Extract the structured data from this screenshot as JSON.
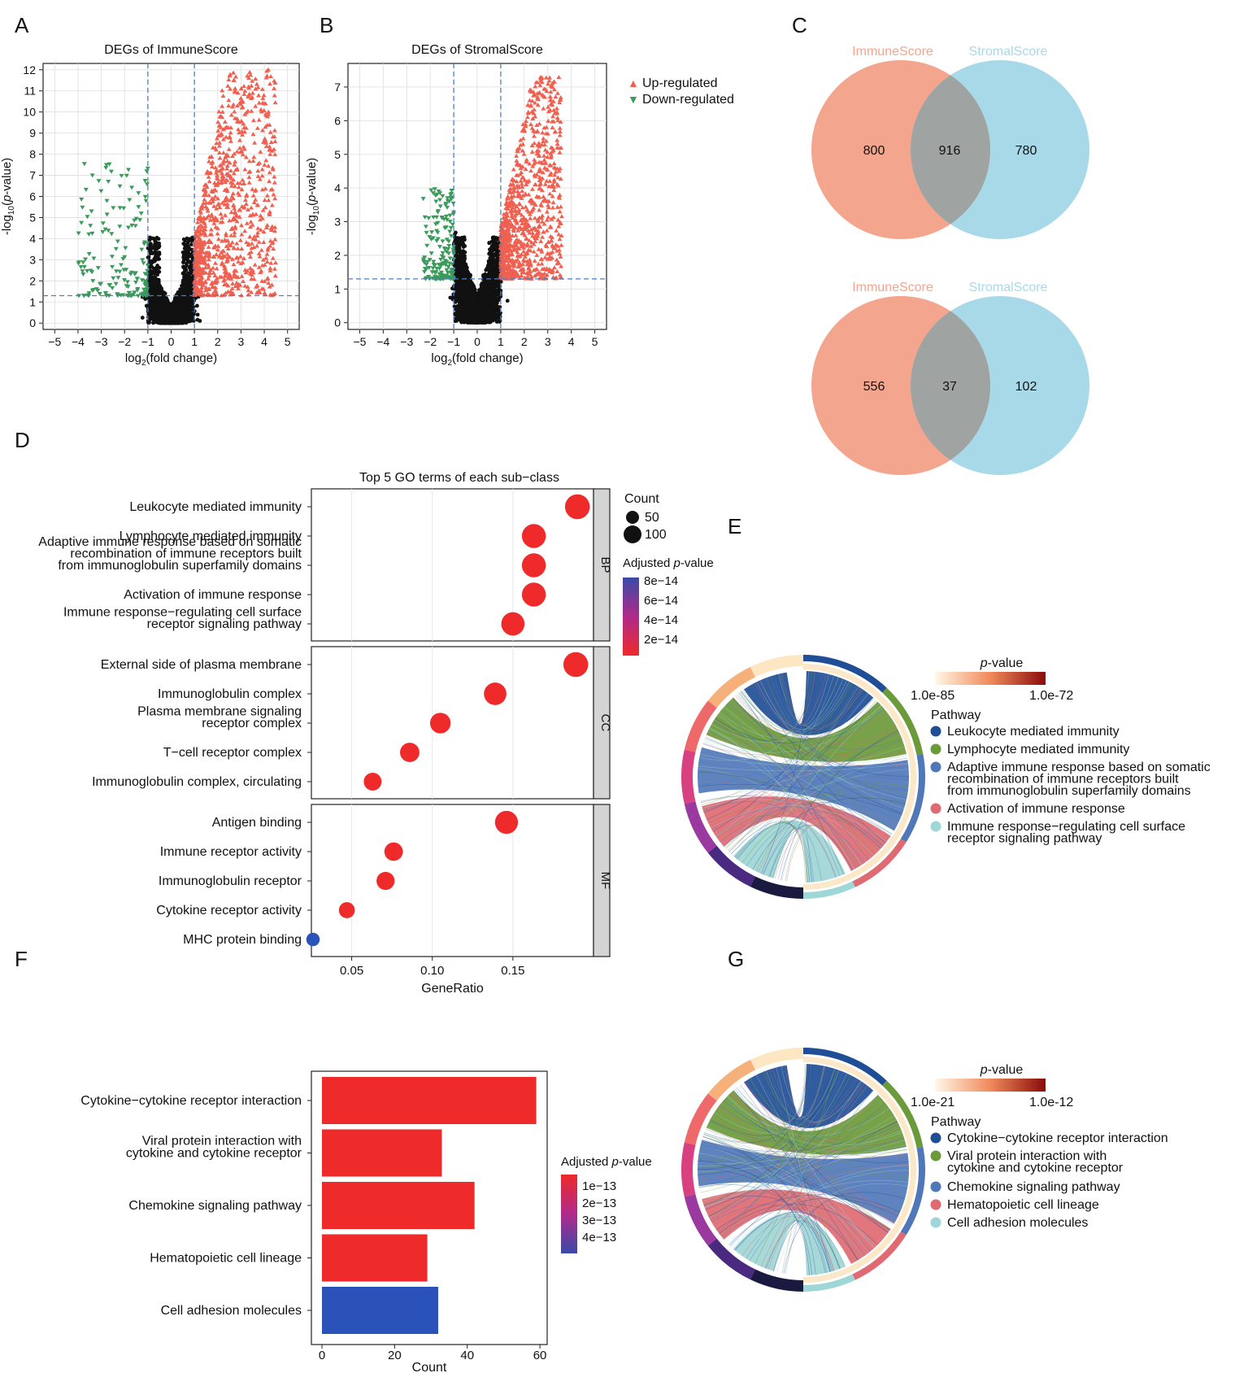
{
  "panels": {
    "A": "A",
    "B": "B",
    "C": "C",
    "D": "D",
    "E": "E",
    "F": "F",
    "G": "G"
  },
  "colors": {
    "up": "#f06050",
    "down": "#3a9a5a",
    "ns": "#111111",
    "immune": "#f4a58e",
    "stromal": "#a8d9e9",
    "overlap": "#9fa3a2",
    "gridline": "#dddddd",
    "dashed": "#4a7fc4"
  },
  "chart_data": [
    {
      "id": "A",
      "type": "scatter",
      "title": "DEGs of ImmuneScore",
      "xlabel": "log2(fold change)",
      "ylabel": "-log10(p-value)",
      "xlim": [
        -5.5,
        5.5
      ],
      "ylim": [
        -0.3,
        12.3
      ],
      "xticks": [
        -5,
        -4,
        -3,
        -2,
        -1,
        0,
        1,
        2,
        3,
        4,
        5
      ],
      "yticks": [
        0,
        1,
        2,
        3,
        4,
        5,
        6,
        7,
        8,
        9,
        10,
        11,
        12
      ],
      "fc_threshold": [
        -1,
        1
      ],
      "p_threshold": 1.3,
      "cloud": {
        "up": {
          "x": [
            1,
            4.5
          ],
          "y": [
            1.3,
            12
          ]
        },
        "down": {
          "x": [
            -4,
            -1
          ],
          "y": [
            1.3,
            7.6
          ]
        }
      }
    },
    {
      "id": "B",
      "type": "scatter",
      "title": "DEGs of StromalScore",
      "xlabel": "log2(fold change)",
      "ylabel": "-log10(p-value)",
      "xlim": [
        -5.5,
        5.5
      ],
      "ylim": [
        -0.2,
        7.7
      ],
      "xticks": [
        -5,
        -4,
        -3,
        -2,
        -1,
        0,
        1,
        2,
        3,
        4,
        5
      ],
      "yticks": [
        0,
        1,
        2,
        3,
        4,
        5,
        6,
        7
      ],
      "fc_threshold": [
        -1,
        1
      ],
      "p_threshold": 1.3,
      "cloud": {
        "up": {
          "x": [
            1,
            3.6
          ],
          "y": [
            1.3,
            7.3
          ]
        },
        "down": {
          "x": [
            -2.3,
            -1
          ],
          "y": [
            1.3,
            4.0
          ]
        }
      },
      "legend": [
        "Up-regulated",
        "Down-regulated"
      ]
    },
    {
      "id": "C1",
      "type": "venn",
      "sets": [
        "ImmuneScore",
        "StromalScore"
      ],
      "values": {
        "only_a": 800,
        "both": 916,
        "only_b": 780
      }
    },
    {
      "id": "C2",
      "type": "venn",
      "sets": [
        "ImmuneScore",
        "StromalScore"
      ],
      "values": {
        "only_a": 556,
        "both": 37,
        "only_b": 102
      }
    },
    {
      "id": "D",
      "type": "scatter",
      "title": "Top 5 GO terms of each sub−class",
      "xlabel": "GeneRatio",
      "xlim": [
        0.025,
        0.2
      ],
      "xticks": [
        0.05,
        0.1,
        0.15
      ],
      "xtick_labels": [
        "0.05",
        "0.10",
        "0.15"
      ],
      "size_legend": {
        "title": "Count",
        "values": [
          50,
          100
        ]
      },
      "color_legend": {
        "title": "Adjusted p-value",
        "ticks": [
          "8e−14",
          "6e−14",
          "4e−14",
          "2e−14"
        ]
      },
      "groups": [
        {
          "name": "BP",
          "terms": [
            {
              "label": [
                "Leukocyte mediated immunity"
              ],
              "x": 0.19,
              "count": 105,
              "color": "#ee2a2a"
            },
            {
              "label": [
                "Lymphocyte mediated immunity"
              ],
              "x": 0.163,
              "count": 95,
              "color": "#ee2a2a"
            },
            {
              "label": [
                "Adaptive immune response based on  somatic",
                "recombination of immune receptors built",
                "from immunoglobulin superfamily domains"
              ],
              "x": 0.163,
              "count": 95,
              "color": "#ee2a2a"
            },
            {
              "label": [
                "Activation of immune response"
              ],
              "x": 0.163,
              "count": 95,
              "color": "#ee2a2a"
            },
            {
              "label": [
                "Immune response−regulating cell surface",
                "receptor signaling pathway"
              ],
              "x": 0.15,
              "count": 88,
              "color": "#ee2a2a"
            }
          ]
        },
        {
          "name": "CC",
          "terms": [
            {
              "label": [
                "External side of plasma membrane"
              ],
              "x": 0.189,
              "count": 105,
              "color": "#ee2a2a"
            },
            {
              "label": [
                "Immunoglobulin complex"
              ],
              "x": 0.139,
              "count": 80,
              "color": "#ee2a2a"
            },
            {
              "label": [
                "Plasma membrane signaling",
                "receptor complex"
              ],
              "x": 0.105,
              "count": 62,
              "color": "#ee2a2a"
            },
            {
              "label": [
                "T−cell receptor complex"
              ],
              "x": 0.086,
              "count": 52,
              "color": "#ee2a2a"
            },
            {
              "label": [
                "Immunoglobulin complex, circulating"
              ],
              "x": 0.063,
              "count": 40,
              "color": "#ee2a2a"
            }
          ]
        },
        {
          "name": "MF",
          "terms": [
            {
              "label": [
                "Antigen binding"
              ],
              "x": 0.146,
              "count": 85,
              "color": "#ee2a2a"
            },
            {
              "label": [
                "Immune receptor activity"
              ],
              "x": 0.076,
              "count": 45,
              "color": "#ee2a2a"
            },
            {
              "label": [
                "Immunoglobulin receptor"
              ],
              "x": 0.071,
              "count": 42,
              "color": "#ee2a2a"
            },
            {
              "label": [
                "Cytokine receptor activity"
              ],
              "x": 0.047,
              "count": 28,
              "color": "#ee2a2a"
            },
            {
              "label": [
                "MHC protein binding"
              ],
              "x": 0.026,
              "count": 15,
              "color": "#2a52b8"
            }
          ]
        }
      ]
    },
    {
      "id": "E",
      "type": "chord",
      "colorbar": {
        "title": "p-value",
        "min_label": "1.0e-85",
        "max_label": "1.0e-72"
      },
      "legend_title": "Pathway",
      "pathways": [
        {
          "label": [
            "Leukocyte mediated immunity"
          ],
          "color": "#1f4e96"
        },
        {
          "label": [
            "Lymphocyte mediated immunity"
          ],
          "color": "#6b9a3a"
        },
        {
          "label": [
            "Adaptive immune response based on  somatic",
            "recombination of immune receptors built",
            "from immunoglobulin superfamily domains"
          ],
          "color": "#5078b8"
        },
        {
          "label": [
            "Activation of immune response"
          ],
          "color": "#e06a72"
        },
        {
          "label": [
            "Immune response−regulating cell surface",
            "receptor signaling pathway"
          ],
          "color": "#9fd6d6"
        }
      ]
    },
    {
      "id": "F",
      "type": "bar",
      "orientation": "horizontal",
      "xlabel": "Count",
      "xlim": [
        0,
        62
      ],
      "xticks": [
        0,
        20,
        40,
        60
      ],
      "categories": [
        [
          "Cytokine−cytokine receptor interaction"
        ],
        [
          "Viral protein interaction with",
          "cytokine and cytokine receptor"
        ],
        [
          "Chemokine signaling pathway"
        ],
        [
          "Hematopoietic cell lineage"
        ],
        [
          "Cell adhesion molecules"
        ]
      ],
      "values": [
        59,
        33,
        42,
        29,
        32
      ],
      "bar_colors": [
        "#ee2a2a",
        "#ee2a2a",
        "#ee2a2a",
        "#ee2a2a",
        "#2a52b8"
      ],
      "color_legend": {
        "title": "Adjusted p-value",
        "ticks": [
          "1e−13",
          "2e−13",
          "3e−13",
          "4e−13"
        ]
      }
    },
    {
      "id": "G",
      "type": "chord",
      "colorbar": {
        "title": "p-value",
        "min_label": "1.0e-21",
        "max_label": "1.0e-12"
      },
      "legend_title": "Pathway",
      "pathways": [
        {
          "label": [
            "Cytokine−cytokine receptor interaction"
          ],
          "color": "#1f4e96"
        },
        {
          "label": [
            "Viral protein interaction with",
            "cytokine and cytokine receptor"
          ],
          "color": "#6b9a3a"
        },
        {
          "label": [
            "Chemokine signaling pathway"
          ],
          "color": "#5078b8"
        },
        {
          "label": [
            "Hematopoietic cell lineage"
          ],
          "color": "#e06a72"
        },
        {
          "label": [
            "Cell adhesion molecules"
          ],
          "color": "#9fd6d6"
        }
      ]
    }
  ]
}
